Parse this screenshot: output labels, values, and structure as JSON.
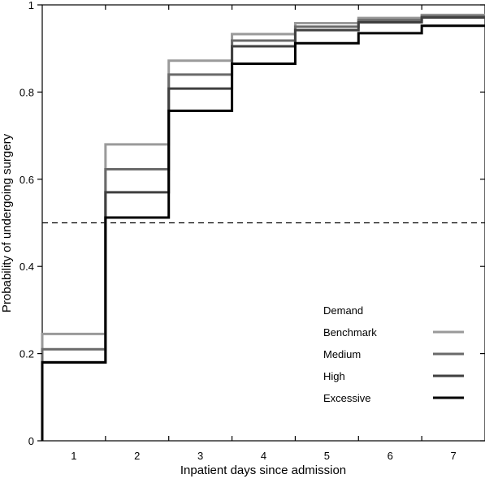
{
  "chart_data": {
    "type": "line",
    "subtype": "step",
    "title": "",
    "xlabel": "Inpatient days since admission",
    "ylabel": "Probability of undergoing surgery",
    "xlim": [
      0.5,
      7.5
    ],
    "ylim": [
      0,
      1
    ],
    "x_ticks": [
      1,
      2,
      3,
      4,
      5,
      6,
      7
    ],
    "y_ticks": [
      0,
      0.2,
      0.4,
      0.6,
      0.8,
      1
    ],
    "y_tick_labels": [
      "0",
      "0.2",
      "0.4",
      "0.6",
      "0.8",
      "1"
    ],
    "grid": false,
    "x": [
      1,
      2,
      3,
      4,
      5,
      6,
      7
    ],
    "reference_line": {
      "y": 0.5,
      "style": "dashed"
    },
    "legend": {
      "title": "Demand",
      "position": "bottom-right"
    },
    "series": [
      {
        "name": "Benchmark",
        "color": "#9a9a9a",
        "values": [
          0.245,
          0.68,
          0.872,
          0.933,
          0.958,
          0.97,
          0.977
        ]
      },
      {
        "name": "Medium",
        "color": "#6a6a6a",
        "values": [
          0.21,
          0.623,
          0.84,
          0.918,
          0.95,
          0.965,
          0.974
        ]
      },
      {
        "name": "High",
        "color": "#404040",
        "values": [
          0.18,
          0.57,
          0.808,
          0.905,
          0.942,
          0.96,
          0.971
        ]
      },
      {
        "name": "Excessive",
        "color": "#000000",
        "values": [
          0.18,
          0.512,
          0.757,
          0.865,
          0.912,
          0.935,
          0.952
        ]
      }
    ]
  }
}
